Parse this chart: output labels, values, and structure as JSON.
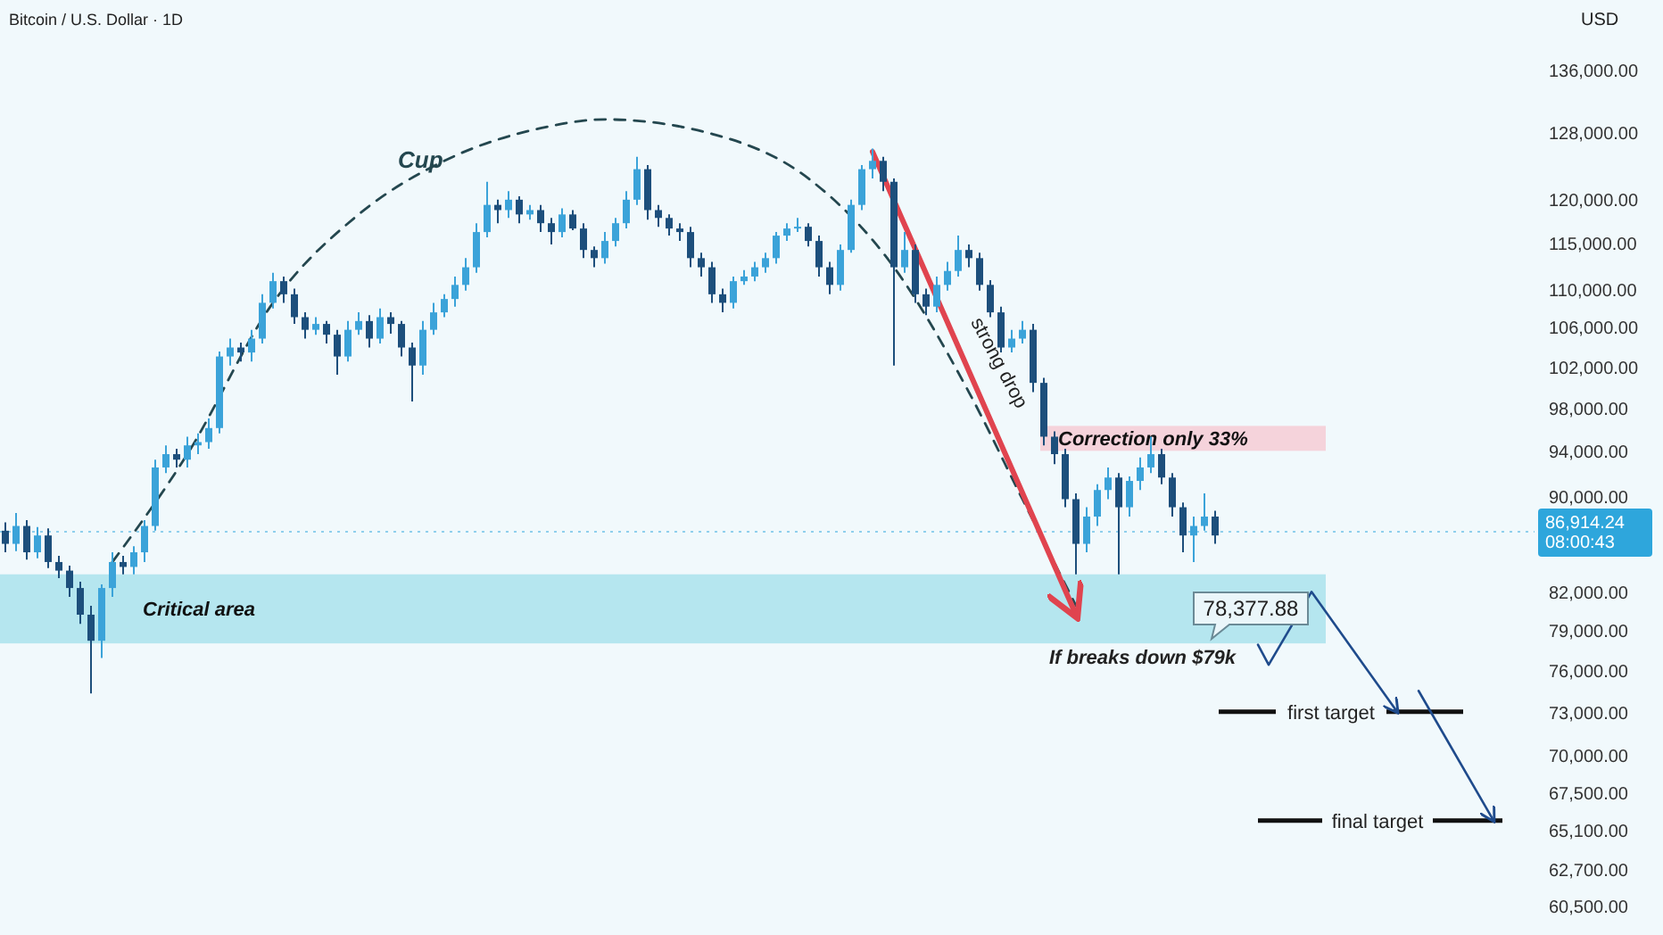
{
  "chart_data": {
    "type": "candlestick",
    "title": "Bitcoin / U.S. Dollar · 1D",
    "ylabel": "USD",
    "log": true,
    "tick_labels": "y",
    "ylim": [
      58800,
      145500
    ],
    "yticks": [
      {
        "value": 136000,
        "label": "136,000.00"
      },
      {
        "value": 128000,
        "label": "128,000.00"
      },
      {
        "value": 120000,
        "label": "120,000.00"
      },
      {
        "value": 115000,
        "label": "115,000.00"
      },
      {
        "value": 110000,
        "label": "110,000.00"
      },
      {
        "value": 106000,
        "label": "106,000.00"
      },
      {
        "value": 102000,
        "label": "102,000.00"
      },
      {
        "value": 98000,
        "label": "98,000.00"
      },
      {
        "value": 94000,
        "label": "94,000.00"
      },
      {
        "value": 90000,
        "label": "90,000.00"
      },
      {
        "value": 82000,
        "label": "82,000.00"
      },
      {
        "value": 79000,
        "label": "79,000.00"
      },
      {
        "value": 76000,
        "label": "76,000.00"
      },
      {
        "value": 73000,
        "label": "73,000.00"
      },
      {
        "value": 70000,
        "label": "70,000.00"
      },
      {
        "value": 67500,
        "label": "67,500.00"
      },
      {
        "value": 65100,
        "label": "65,100.00"
      },
      {
        "value": 62700,
        "label": "62,700.00"
      },
      {
        "value": 60500,
        "label": "60,500.00"
      }
    ],
    "categories": [
      null,
      null,
      null,
      null,
      null,
      null,
      null,
      null,
      null,
      null,
      null,
      null,
      null,
      null,
      null,
      null,
      null,
      null,
      null,
      null,
      null,
      null,
      null,
      null,
      null,
      null,
      null,
      null,
      null,
      null,
      null,
      null,
      null,
      null,
      null,
      null,
      null,
      null,
      null,
      null,
      null,
      null,
      null,
      null,
      null,
      null,
      null,
      null,
      null,
      null,
      null,
      null,
      null,
      null,
      null,
      null,
      null,
      null,
      null,
      null,
      null,
      null,
      null,
      null,
      null,
      null,
      null,
      null,
      null,
      null,
      null,
      null,
      null,
      null,
      null,
      null,
      null,
      null,
      null,
      null,
      null,
      null,
      null,
      null,
      null,
      null,
      null,
      null,
      null,
      null,
      null,
      null,
      null,
      null,
      null,
      null,
      null,
      null,
      null,
      null,
      null,
      null,
      null,
      null,
      null,
      null,
      null,
      null,
      null,
      null,
      null,
      null,
      null,
      null,
      null,
      null,
      null,
      null,
      null,
      null,
      null,
      null,
      null,
      null,
      null,
      null,
      null,
      null,
      null,
      null,
      null,
      null,
      null,
      null,
      null,
      null,
      null,
      null,
      null,
      null,
      null
    ],
    "ohlc": [
      [
        87000,
        87700,
        85200,
        85900
      ],
      [
        85900,
        88500,
        85300,
        87400
      ],
      [
        87400,
        87900,
        84600,
        85200
      ],
      [
        85200,
        87300,
        84700,
        86600
      ],
      [
        86600,
        87200,
        83900,
        84400
      ],
      [
        84400,
        84900,
        83100,
        83700
      ],
      [
        83700,
        84100,
        81600,
        82300
      ],
      [
        82300,
        82800,
        79500,
        80200
      ],
      [
        80200,
        80900,
        74300,
        78200
      ],
      [
        78200,
        82600,
        76900,
        82300
      ],
      [
        82300,
        85200,
        81600,
        84400
      ],
      [
        84400,
        84900,
        83400,
        84000
      ],
      [
        84000,
        85700,
        83400,
        85200
      ],
      [
        85200,
        87900,
        84400,
        87400
      ],
      [
        87400,
        93200,
        87000,
        92500
      ],
      [
        92500,
        94500,
        92000,
        93700
      ],
      [
        93700,
        94200,
        92500,
        93200
      ],
      [
        93200,
        95300,
        92500,
        94500
      ],
      [
        94500,
        95600,
        93700,
        94800
      ],
      [
        94800,
        97000,
        94200,
        96100
      ],
      [
        96100,
        103500,
        95600,
        103000
      ],
      [
        103000,
        104800,
        102100,
        103900
      ],
      [
        103900,
        104400,
        102500,
        103400
      ],
      [
        103400,
        105700,
        102500,
        104800
      ],
      [
        104800,
        109400,
        104300,
        108500
      ],
      [
        108500,
        111700,
        107900,
        110800
      ],
      [
        110800,
        111300,
        108500,
        109400
      ],
      [
        109400,
        110000,
        106300,
        107000
      ],
      [
        107000,
        107500,
        104800,
        105700
      ],
      [
        105700,
        107000,
        105200,
        106300
      ],
      [
        106300,
        106600,
        104300,
        105200
      ],
      [
        105200,
        105700,
        101200,
        103000
      ],
      [
        103000,
        106600,
        102500,
        105700
      ],
      [
        105700,
        107500,
        105200,
        106600
      ],
      [
        106600,
        107200,
        103900,
        104800
      ],
      [
        104800,
        107900,
        104300,
        107000
      ],
      [
        107000,
        107500,
        105300,
        106300
      ],
      [
        106300,
        106600,
        103000,
        103900
      ],
      [
        103900,
        104400,
        98600,
        102100
      ],
      [
        102100,
        106600,
        101200,
        105700
      ],
      [
        105700,
        108500,
        105200,
        107500
      ],
      [
        107500,
        109400,
        107000,
        108900
      ],
      [
        108900,
        111300,
        108100,
        110400
      ],
      [
        110400,
        113300,
        109800,
        112300
      ],
      [
        112300,
        117200,
        111700,
        116200
      ],
      [
        116200,
        122000,
        115600,
        119300
      ],
      [
        119300,
        119900,
        117200,
        118700
      ],
      [
        118700,
        120900,
        117800,
        119900
      ],
      [
        119900,
        120300,
        117200,
        118200
      ],
      [
        118200,
        119300,
        117600,
        118700
      ],
      [
        118700,
        119300,
        116200,
        117200
      ],
      [
        117200,
        117800,
        114800,
        116200
      ],
      [
        116200,
        118900,
        115600,
        118200
      ],
      [
        118200,
        118700,
        116400,
        116600
      ],
      [
        116600,
        117200,
        113300,
        114200
      ],
      [
        114200,
        114600,
        112300,
        113300
      ],
      [
        113300,
        116200,
        112700,
        115200
      ],
      [
        115200,
        117800,
        114600,
        117200
      ],
      [
        117200,
        120900,
        116600,
        119900
      ],
      [
        119900,
        125000,
        119300,
        123500
      ],
      [
        123500,
        124000,
        117600,
        118700
      ],
      [
        118700,
        119300,
        116800,
        117800
      ],
      [
        117800,
        118200,
        115800,
        116600
      ],
      [
        116600,
        117200,
        115200,
        116200
      ],
      [
        116200,
        116800,
        112300,
        113300
      ],
      [
        113300,
        113900,
        111300,
        112300
      ],
      [
        112300,
        112900,
        108500,
        109400
      ],
      [
        109400,
        110000,
        107500,
        108500
      ],
      [
        108500,
        111300,
        107900,
        110800
      ],
      [
        110800,
        112000,
        110400,
        111300
      ],
      [
        111300,
        112900,
        110800,
        112300
      ],
      [
        112300,
        113900,
        111700,
        113300
      ],
      [
        113300,
        116200,
        112700,
        115800
      ],
      [
        115800,
        117200,
        115200,
        116600
      ],
      [
        116600,
        117800,
        116200,
        116800
      ],
      [
        116800,
        117200,
        114600,
        115200
      ],
      [
        115200,
        115800,
        111300,
        112300
      ],
      [
        112300,
        112900,
        109400,
        110400
      ],
      [
        110400,
        114800,
        109800,
        114200
      ],
      [
        114200,
        119900,
        113900,
        119300
      ],
      [
        119300,
        124000,
        118700,
        123500
      ],
      [
        123500,
        126000,
        122400,
        124500
      ],
      [
        124500,
        125000,
        120900,
        122000
      ],
      [
        122000,
        122400,
        102100,
        112300
      ],
      [
        112300,
        116200,
        111700,
        114200
      ],
      [
        114200,
        114800,
        108500,
        109400
      ],
      [
        109400,
        110000,
        107200,
        108100
      ],
      [
        108100,
        111300,
        107500,
        110400
      ],
      [
        110400,
        112900,
        109800,
        111900
      ],
      [
        111900,
        115800,
        111300,
        114200
      ],
      [
        114200,
        114800,
        112300,
        113300
      ],
      [
        113300,
        113900,
        109800,
        110400
      ],
      [
        110400,
        110900,
        107000,
        107500
      ],
      [
        107500,
        108100,
        103400,
        103900
      ],
      [
        103900,
        105700,
        103400,
        104800
      ],
      [
        104800,
        106600,
        104300,
        105700
      ],
      [
        105700,
        106300,
        99500,
        100400
      ],
      [
        100400,
        100900,
        94500,
        95300
      ],
      [
        95300,
        95800,
        92800,
        93700
      ],
      [
        93700,
        94200,
        89000,
        89700
      ],
      [
        89700,
        90200,
        83400,
        85900
      ],
      [
        85900,
        89000,
        85200,
        88200
      ],
      [
        88200,
        91000,
        87400,
        90500
      ],
      [
        90500,
        92500,
        89700,
        91600
      ],
      [
        91600,
        92000,
        83400,
        89000
      ],
      [
        89000,
        91700,
        88200,
        91300
      ],
      [
        91300,
        93400,
        90500,
        92500
      ],
      [
        92500,
        95300,
        92000,
        93700
      ],
      [
        93700,
        94200,
        91000,
        91600
      ],
      [
        91600,
        92000,
        88200,
        89000
      ],
      [
        89000,
        89400,
        85200,
        86600
      ],
      [
        86600,
        88200,
        84400,
        87400
      ],
      [
        87400,
        90200,
        87000,
        88200
      ],
      [
        88200,
        88700,
        85900,
        86600
      ],
      null,
      null,
      null,
      null,
      null,
      null,
      null,
      null,
      null,
      null,
      null,
      null,
      null,
      null,
      null,
      null,
      null,
      null,
      null,
      null,
      null,
      null,
      null,
      null,
      null,
      null,
      null
    ],
    "colors": [
      "#1d4f7c",
      "#3ba3d9",
      "#1d4f7c",
      "#3ba3d9",
      "#1d4f7c",
      "#1d4f7c",
      "#1d4f7c",
      "#1d4f7c",
      "#1d4f7c",
      "#3ba3d9",
      "#3ba3d9",
      "#1d4f7c",
      "#3ba3d9",
      "#3ba3d9",
      "#3ba3d9",
      "#3ba3d9",
      "#1d4f7c",
      "#3ba3d9",
      "#3ba3d9",
      "#3ba3d9",
      "#3ba3d9",
      "#3ba3d9",
      "#1d4f7c",
      "#3ba3d9",
      "#3ba3d9",
      "#3ba3d9",
      "#1d4f7c",
      "#1d4f7c",
      "#1d4f7c",
      "#3ba3d9",
      "#1d4f7c",
      "#1d4f7c",
      "#3ba3d9",
      "#3ba3d9",
      "#1d4f7c",
      "#3ba3d9",
      "#1d4f7c",
      "#1d4f7c",
      "#1d4f7c",
      "#3ba3d9",
      "#3ba3d9",
      "#3ba3d9",
      "#3ba3d9",
      "#3ba3d9",
      "#3ba3d9",
      "#3ba3d9",
      "#1d4f7c",
      "#3ba3d9",
      "#1d4f7c",
      "#3ba3d9",
      "#1d4f7c",
      "#1d4f7c",
      "#3ba3d9",
      "#1d4f7c",
      "#1d4f7c",
      "#1d4f7c",
      "#3ba3d9",
      "#3ba3d9",
      "#3ba3d9",
      "#3ba3d9",
      "#1d4f7c",
      "#1d4f7c",
      "#1d4f7c",
      "#1d4f7c",
      "#1d4f7c",
      "#1d4f7c",
      "#1d4f7c",
      "#1d4f7c",
      "#3ba3d9",
      "#3ba3d9",
      "#3ba3d9",
      "#3ba3d9",
      "#3ba3d9",
      "#3ba3d9",
      "#3ba3d9",
      "#1d4f7c",
      "#1d4f7c",
      "#1d4f7c",
      "#3ba3d9",
      "#3ba3d9",
      "#3ba3d9",
      "#3ba3d9",
      "#1d4f7c",
      "#1d4f7c",
      "#3ba3d9",
      "#1d4f7c",
      "#1d4f7c",
      "#3ba3d9",
      "#3ba3d9",
      "#3ba3d9",
      "#1d4f7c",
      "#1d4f7c",
      "#1d4f7c",
      "#1d4f7c",
      "#3ba3d9",
      "#3ba3d9",
      "#1d4f7c",
      "#1d4f7c",
      "#1d4f7c",
      "#1d4f7c",
      "#1d4f7c",
      "#3ba3d9",
      "#3ba3d9",
      "#3ba3d9",
      "#1d4f7c",
      "#3ba3d9",
      "#3ba3d9",
      "#3ba3d9",
      "#1d4f7c",
      "#1d4f7c",
      "#1d4f7c",
      "#3ba3d9",
      "#3ba3d9",
      "#1d4f7c",
      null,
      null,
      null,
      null,
      null,
      null,
      null,
      null,
      null,
      null,
      null,
      null,
      null,
      null,
      null,
      null,
      null,
      null,
      null,
      null,
      null,
      null,
      null,
      null,
      null,
      null,
      null
    ],
    "series": [
      {
        "name": "Cup",
        "type": "line",
        "color": "#24474f",
        "line_style": "dashed",
        "values": [
          null,
          null,
          null,
          null,
          null,
          null,
          null,
          null,
          null,
          null,
          84400,
          null,
          null,
          null,
          null,
          null,
          null,
          93700,
          null,
          null,
          null,
          null,
          null,
          null,
          null,
          108500,
          null,
          null,
          null,
          null,
          null,
          null,
          null,
          118200,
          null,
          null,
          null,
          null,
          null,
          null,
          null,
          124500,
          null,
          null,
          null,
          null,
          null,
          null,
          null,
          null,
          128500,
          null,
          null,
          null,
          null,
          null,
          129600,
          null,
          null,
          null,
          null,
          null,
          null,
          null,
          null,
          null,
          127800,
          null,
          null,
          null,
          null,
          null,
          null,
          null,
          null,
          122400,
          null,
          null,
          null,
          null,
          null,
          null,
          null,
          112300,
          null,
          null,
          null,
          null,
          null,
          null,
          99500,
          null,
          null,
          null,
          null,
          89700,
          null,
          null,
          null,
          null,
          80900,
          null,
          null,
          null,
          null,
          null,
          null,
          null,
          null,
          null,
          null,
          null,
          null,
          null,
          null,
          null,
          null,
          null,
          null,
          null,
          null,
          null,
          null,
          null,
          null,
          null,
          null,
          null,
          null,
          null,
          null,
          null,
          null,
          null,
          null,
          null,
          null,
          null,
          null,
          null,
          null
        ]
      },
      {
        "type": "line",
        "color": "#e0444f",
        "values": [
          null,
          null,
          null,
          null,
          null,
          null,
          null,
          null,
          null,
          null,
          null,
          null,
          null,
          null,
          null,
          null,
          null,
          null,
          null,
          null,
          null,
          null,
          null,
          null,
          null,
          null,
          null,
          null,
          null,
          null,
          null,
          null,
          null,
          null,
          null,
          null,
          null,
          null,
          null,
          null,
          null,
          null,
          null,
          null,
          null,
          null,
          null,
          null,
          null,
          null,
          null,
          null,
          null,
          null,
          null,
          null,
          null,
          null,
          null,
          null,
          null,
          null,
          null,
          null,
          null,
          null,
          null,
          null,
          null,
          null,
          null,
          null,
          null,
          null,
          null,
          null,
          null,
          null,
          null,
          null,
          null,
          125600,
          null,
          null,
          null,
          null,
          null,
          null,
          null,
          null,
          null,
          null,
          null,
          null,
          null,
          null,
          null,
          null,
          null,
          null,
          80200,
          null,
          null,
          null,
          null,
          null,
          null,
          null,
          null,
          null,
          null,
          null,
          null,
          null,
          null,
          null,
          null,
          null,
          null,
          null,
          null,
          null,
          null,
          null,
          null,
          null,
          null,
          null,
          null,
          null,
          null,
          null,
          null,
          null,
          null,
          null,
          null,
          null,
          null,
          null,
          null
        ]
      },
      {
        "type": "line",
        "color": "#1f4b8c",
        "values": [
          null,
          null,
          null,
          null,
          null,
          null,
          null,
          null,
          null,
          null,
          null,
          null,
          null,
          null,
          null,
          null,
          null,
          null,
          null,
          null,
          null,
          null,
          null,
          null,
          null,
          null,
          null,
          null,
          null,
          null,
          null,
          null,
          null,
          null,
          null,
          null,
          null,
          null,
          null,
          null,
          null,
          null,
          null,
          null,
          null,
          null,
          null,
          null,
          null,
          null,
          null,
          null,
          null,
          null,
          null,
          null,
          null,
          null,
          null,
          null,
          null,
          null,
          null,
          null,
          null,
          null,
          null,
          null,
          null,
          null,
          null,
          null,
          null,
          null,
          null,
          null,
          null,
          null,
          null,
          null,
          null,
          null,
          null,
          null,
          null,
          null,
          null,
          null,
          null,
          null,
          null,
          null,
          null,
          null,
          null,
          null,
          null,
          null,
          null,
          null,
          null,
          null,
          null,
          null,
          null,
          null,
          null,
          null,
          null,
          null,
          null,
          null,
          null,
          null,
          null,
          null,
          null,
          77900,
          76400,
          null,
          null,
          null,
          82000,
          null,
          null,
          null,
          null,
          null,
          null,
          null,
          73000,
          null,
          null,
          null,
          null,
          null,
          null,
          null,
          null,
          null,
          null
        ]
      },
      {
        "type": "line",
        "color": "#1f4b8c",
        "values": [
          null,
          null,
          null,
          null,
          null,
          null,
          null,
          null,
          null,
          null,
          null,
          null,
          null,
          null,
          null,
          null,
          null,
          null,
          null,
          null,
          null,
          null,
          null,
          null,
          null,
          null,
          null,
          null,
          null,
          null,
          null,
          null,
          null,
          null,
          null,
          null,
          null,
          null,
          null,
          null,
          null,
          null,
          null,
          null,
          null,
          null,
          null,
          null,
          null,
          null,
          null,
          null,
          null,
          null,
          null,
          null,
          null,
          null,
          null,
          null,
          null,
          null,
          null,
          null,
          null,
          null,
          null,
          null,
          null,
          null,
          null,
          null,
          null,
          null,
          null,
          null,
          null,
          null,
          null,
          null,
          null,
          null,
          null,
          null,
          null,
          null,
          null,
          null,
          null,
          null,
          null,
          null,
          null,
          null,
          null,
          null,
          null,
          null,
          null,
          null,
          null,
          null,
          null,
          null,
          null,
          null,
          null,
          null,
          null,
          null,
          null,
          null,
          null,
          null,
          null,
          null,
          null,
          null,
          null,
          null,
          null,
          null,
          null,
          null,
          null,
          null,
          null,
          null,
          null,
          null,
          null,
          null,
          74500,
          null,
          null,
          null,
          null,
          null,
          null,
          65700,
          null
        ]
      }
    ],
    "bands": [
      {
        "axis": "y",
        "from": 78000,
        "to": 83400,
        "label": "Critical area",
        "color": "#b5e6ef"
      },
      {
        "axis": "y",
        "from": 94000,
        "to": 96300,
        "label": "Correction only 33%",
        "color": "#f5d3db"
      }
    ],
    "ref_lines": [
      {
        "axis": "y",
        "value": 86914.24,
        "label": "86,914.24 08:00:43",
        "color": "#2ea6dc",
        "line_style": "dotted"
      },
      {
        "axis": "y",
        "value": 73000,
        "label": "first target",
        "color": "#111111"
      },
      {
        "axis": "y",
        "value": 65700,
        "label": "final target",
        "color": "#111111"
      }
    ],
    "annotations": [
      "strong drop",
      "If breaks down $79k",
      "78,377.88"
    ]
  }
}
